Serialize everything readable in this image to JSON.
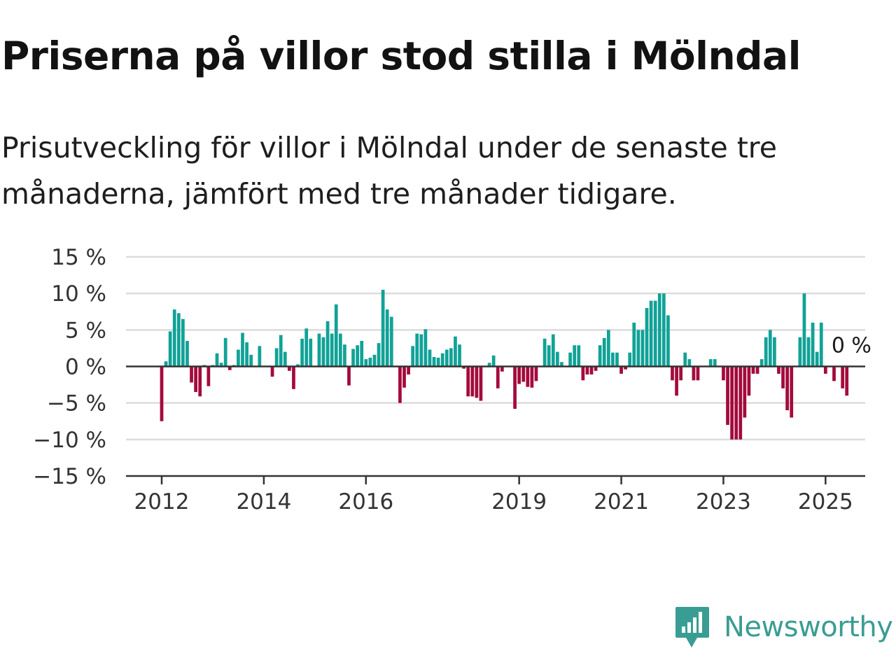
{
  "title": "Priserna på villor stod stilla i Mölndal",
  "subtitle": "Prisutveckling för villor i Mölndal under de senaste tre månaderna, jämfört med tre månader tidigare.",
  "brand": {
    "name": "Newsworthy",
    "color": "#3a9d93"
  },
  "colors": {
    "positive": "#11a297",
    "negative": "#a30b3c",
    "grid": "#dcdcdc",
    "axis": "#333333"
  },
  "chart_data": {
    "type": "bar",
    "title": "Priserna på villor stod stilla i Mölndal",
    "ylim": [
      -15,
      15
    ],
    "y_ticks": [
      15,
      10,
      5,
      0,
      -5,
      -10,
      -15
    ],
    "y_tick_labels": [
      "15 %",
      "10 %",
      "5 %",
      "0 %",
      "−5 %",
      "−10 %",
      "−15 %"
    ],
    "x_ticks": [
      {
        "value": 2012,
        "label": "2012"
      },
      {
        "value": 2014,
        "label": "2014"
      },
      {
        "value": 2016,
        "label": "2016"
      },
      {
        "value": 2019,
        "label": "2019"
      },
      {
        "value": 2021,
        "label": "2021"
      },
      {
        "value": 2023,
        "label": "2023"
      },
      {
        "value": 2025,
        "label": "2025"
      }
    ],
    "last_value_label": "0 %",
    "grid": true,
    "series": [
      {
        "start": "2012-01",
        "values": [
          -7.5,
          0.7,
          4.8,
          7.8,
          7.3,
          6.5,
          3.5,
          -2.2,
          -3.5,
          -4.1,
          0.2,
          -2.7,
          0.2,
          1.8,
          0.5,
          3.9,
          -0.5,
          0.2,
          2.3,
          4.6,
          3.3,
          1.6,
          0,
          2.8,
          0,
          0,
          -1.4,
          2.5,
          4.3,
          2.0,
          -0.6,
          -3.1,
          0.3,
          3.8,
          5.2,
          3.8,
          0,
          4.5,
          4.0,
          6.2,
          4.5,
          8.5,
          4.5,
          3.0,
          -2.6,
          2.4,
          2.9,
          3.5,
          1.0,
          1.2,
          1.6,
          3.2,
          10.5,
          7.8,
          6.8,
          0,
          -5.0,
          -2.9,
          -1.1,
          2.8,
          4.5,
          4.4,
          5.1,
          2.3,
          1.3,
          1.2,
          1.8,
          2.3,
          2.5,
          4.1,
          3.0,
          -0.3,
          -4.1,
          -4.1,
          -4.3,
          -4.7,
          0,
          0.5,
          1.5,
          -3.0,
          -0.7,
          0,
          0,
          -5.8,
          -2.4,
          -2.1,
          -2.8,
          -2.9,
          -2.0,
          0,
          3.8,
          2.9,
          4.4,
          2.0,
          0.6,
          0,
          1.9,
          2.9,
          2.9,
          -1.9,
          -1.1,
          -1.1,
          -0.6,
          2.9,
          3.9,
          5.0,
          1.9,
          1.9,
          -1.0,
          -0.4,
          1.9,
          6.0,
          5.0,
          5.0,
          8.0,
          9.0,
          9.0,
          10.0,
          10.0,
          7.0,
          -1.9,
          -4.0,
          -1.9,
          1.9,
          1.0,
          -1.9,
          -1.9,
          0,
          0,
          1.0,
          1.0,
          0,
          -1.9,
          -8.0,
          -10.0,
          -10.0,
          -10.0,
          -7.0,
          -4.0,
          -1.0,
          -1.0,
          1.0,
          4.0,
          5.0,
          4.0,
          -1.0,
          -3.0,
          -6.0,
          -7.0,
          0,
          4.0,
          10.0,
          4.0,
          6.0,
          2.0,
          6.0,
          -1.0,
          0,
          -2.0,
          0,
          -3.0,
          -4.0,
          0
        ]
      }
    ]
  }
}
